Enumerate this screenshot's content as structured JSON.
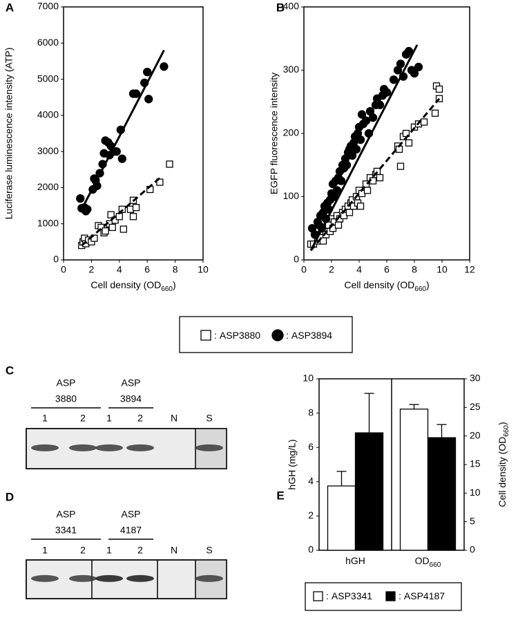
{
  "chart_data": [
    {
      "type": "scatter",
      "panel": "A",
      "ylabel": "Luciferase luminescence intensity (ATP)",
      "xlabel": [
        "Cell density (OD",
        "660",
        ")"
      ],
      "xlim": [
        0,
        10
      ],
      "xticks": [
        0,
        2,
        4,
        6,
        8,
        10
      ],
      "ylim": [
        0,
        7000
      ],
      "yticks": [
        0,
        1000,
        2000,
        3000,
        4000,
        5000,
        6000,
        7000
      ],
      "legend_separator": ":",
      "series": [
        {
          "name": "ASP3880",
          "marker": "square",
          "color": "#ffffff",
          "fit_dash": true,
          "x": [
            1.3,
            1.4,
            1.5,
            1.6,
            1.8,
            2.0,
            2.2,
            2.5,
            2.7,
            2.9,
            3.0,
            3.3,
            3.4,
            3.5,
            3.7,
            4.0,
            4.2,
            4.3,
            4.8,
            5.0,
            5.0,
            5.2,
            6.2,
            6.9,
            7.6
          ],
          "values": [
            400,
            500,
            600,
            450,
            550,
            500,
            600,
            950,
            900,
            750,
            800,
            1000,
            1250,
            900,
            1100,
            1200,
            1400,
            850,
            1400,
            1650,
            1200,
            1450,
            1950,
            2150,
            2650
          ],
          "fit": {
            "x": [
              1.3,
              7.0
            ],
            "values": [
              400,
              2300
            ]
          }
        },
        {
          "name": "ASP3894",
          "marker": "circle",
          "color": "#000000",
          "fit_dash": false,
          "x": [
            1.2,
            1.3,
            1.5,
            1.6,
            1.7,
            2.1,
            2.2,
            2.3,
            2.4,
            2.6,
            2.8,
            2.9,
            3.0,
            3.2,
            3.3,
            3.4,
            3.6,
            3.8,
            4.1,
            4.2,
            5.0,
            5.2,
            5.8,
            6.0,
            6.1,
            7.2
          ],
          "values": [
            1700,
            1430,
            1450,
            1350,
            1400,
            1950,
            2250,
            2200,
            2050,
            2400,
            2650,
            2950,
            3300,
            3250,
            2900,
            3150,
            3000,
            3000,
            3600,
            2800,
            4600,
            4600,
            4900,
            5200,
            4450,
            5350
          ],
          "fit": {
            "x": [
              1.3,
              7.2
            ],
            "values": [
              1400,
              5800
            ]
          }
        }
      ]
    },
    {
      "type": "scatter",
      "panel": "B",
      "ylabel": "EGFP fluorescence intensity",
      "xlabel": [
        "Cell density (OD",
        "660",
        ")"
      ],
      "xlim": [
        0,
        12
      ],
      "xticks": [
        0,
        2,
        4,
        6,
        8,
        10,
        12
      ],
      "ylim": [
        0,
        400
      ],
      "yticks": [
        0,
        100,
        200,
        300,
        400
      ],
      "series": [
        {
          "name": "ASP3880",
          "marker": "square",
          "color": "#ffffff",
          "fit_dash": true,
          "x": [
            0.5,
            0.7,
            1.0,
            1.1,
            1.2,
            1.3,
            1.4,
            1.5,
            1.6,
            1.7,
            1.8,
            1.9,
            2.0,
            2.1,
            2.2,
            2.4,
            2.5,
            2.6,
            2.8,
            2.9,
            3.0,
            3.2,
            3.3,
            3.4,
            3.5,
            3.6,
            3.8,
            3.9,
            4.0,
            4.1,
            4.2,
            4.5,
            4.6,
            4.8,
            5.0,
            5.2,
            5.3,
            5.5,
            6.8,
            6.9,
            7.0,
            7.2,
            7.4,
            7.6,
            8.0,
            8.3,
            8.7,
            9.5,
            9.6,
            9.8,
            9.8
          ],
          "values": [
            25,
            25,
            30,
            40,
            35,
            45,
            30,
            50,
            40,
            60,
            55,
            45,
            65,
            50,
            60,
            70,
            55,
            65,
            75,
            70,
            80,
            85,
            75,
            90,
            95,
            85,
            100,
            90,
            110,
            85,
            105,
            120,
            110,
            130,
            125,
            135,
            140,
            130,
            180,
            175,
            148,
            195,
            200,
            185,
            210,
            215,
            218,
            232,
            275,
            270,
            255
          ],
          "fit": {
            "x": [
              0.5,
              9.8
            ],
            "values": [
              15,
              255
            ]
          }
        },
        {
          "name": "ASP3894",
          "marker": "circle",
          "color": "#000000",
          "fit_dash": false,
          "x": [
            0.6,
            0.8,
            1.0,
            1.1,
            1.2,
            1.3,
            1.4,
            1.5,
            1.6,
            1.7,
            1.8,
            1.9,
            2.0,
            2.1,
            2.2,
            2.3,
            2.4,
            2.5,
            2.6,
            2.7,
            2.8,
            2.9,
            3.0,
            3.1,
            3.2,
            3.3,
            3.4,
            3.5,
            3.6,
            3.7,
            3.8,
            3.9,
            4.0,
            4.1,
            4.2,
            4.3,
            4.5,
            4.7,
            4.8,
            5.0,
            5.2,
            5.3,
            5.5,
            5.7,
            5.8,
            6.0,
            6.5,
            6.8,
            7.0,
            7.2,
            7.4,
            7.6,
            7.8,
            8.0,
            8.3
          ],
          "values": [
            50,
            40,
            60,
            55,
            70,
            50,
            75,
            85,
            65,
            90,
            80,
            95,
            105,
            120,
            100,
            125,
            110,
            130,
            140,
            125,
            150,
            145,
            160,
            150,
            170,
            175,
            180,
            165,
            185,
            195,
            175,
            200,
            210,
            190,
            230,
            215,
            220,
            200,
            235,
            225,
            245,
            255,
            245,
            260,
            270,
            265,
            285,
            300,
            310,
            290,
            325,
            330,
            300,
            295,
            305
          ],
          "fit": {
            "x": [
              0.5,
              8.2
            ],
            "values": [
              15,
              340
            ]
          }
        }
      ]
    },
    {
      "type": "bar",
      "panel": "E",
      "ylabel": "hGH (mg/L)",
      "y2label": [
        "Cell density (OD",
        "660",
        ")"
      ],
      "categories": [
        [
          "hGH"
        ],
        [
          "OD",
          "660"
        ]
      ],
      "category_axes": [
        "y",
        "y2"
      ],
      "ylim": [
        0,
        10
      ],
      "yticks": [
        0,
        2,
        4,
        6,
        8,
        10
      ],
      "y2lim": [
        0,
        30
      ],
      "y2ticks": [
        0,
        5,
        10,
        15,
        20,
        25,
        30
      ],
      "legend_separator": ":",
      "series": [
        {
          "name": "ASP3341",
          "color": "#ffffff",
          "values": [
            3.75,
            24.7
          ],
          "errors": [
            0.85,
            0.8
          ]
        },
        {
          "name": "ASP4187",
          "color": "#000000",
          "values": [
            6.85,
            19.7
          ],
          "errors": [
            2.3,
            2.3
          ]
        }
      ]
    }
  ],
  "gels": [
    {
      "panel": "C",
      "groups": [
        [
          "ASP",
          "3880"
        ],
        [
          "ASP",
          "3894"
        ]
      ],
      "lanes": [
        "1",
        "2",
        "1",
        "2",
        "N",
        "S"
      ]
    },
    {
      "panel": "D",
      "groups": [
        [
          "ASP",
          "3341"
        ],
        [
          "ASP",
          "4187"
        ]
      ],
      "lanes": [
        "1",
        "2",
        "1",
        "2",
        "N",
        "S"
      ]
    }
  ]
}
